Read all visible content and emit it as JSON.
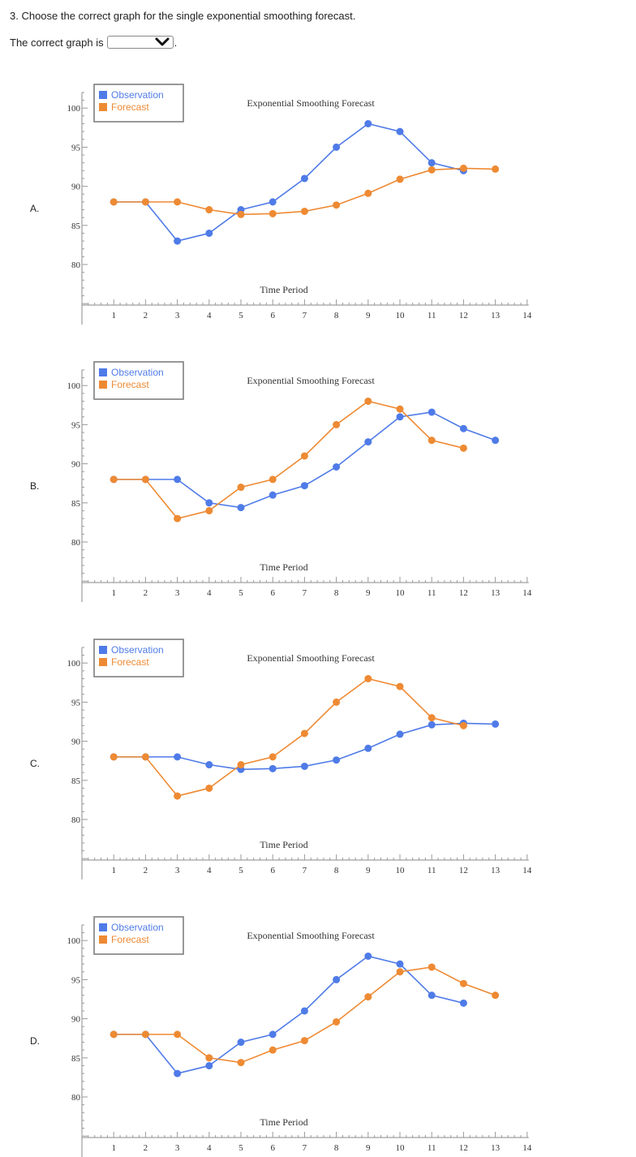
{
  "question": {
    "text": "3. Choose the correct graph for the single exponential smoothing forecast.",
    "answer_prefix": "The correct graph is",
    "answer_suffix": ".",
    "selected_value": ""
  },
  "colors": {
    "observation": "#4f7be8",
    "forecast": "#ee8a33",
    "axis": "#333333"
  },
  "chart_data": [
    {
      "type": "line",
      "option_label": "A.",
      "title": "Exponential Smoothing Forecast",
      "xlabel": "Time Period",
      "ylabel": "",
      "x_ticks": [
        "1",
        "2",
        "3",
        "4",
        "5",
        "6",
        "7",
        "8",
        "9",
        "10",
        "11",
        "12",
        "13",
        "14"
      ],
      "y_ticks": [
        "80",
        "85",
        "90",
        "95",
        "100"
      ],
      "xlim": [
        0,
        14
      ],
      "ylim": [
        75,
        102
      ],
      "legend": [
        "Observation",
        "Forecast"
      ],
      "series": [
        {
          "name": "Observation",
          "x": [
            1,
            2,
            3,
            4,
            5,
            6,
            7,
            8,
            9,
            10,
            11,
            12
          ],
          "values": [
            88,
            88,
            83,
            84,
            87,
            88,
            91,
            95,
            98,
            97,
            93,
            92
          ]
        },
        {
          "name": "Forecast",
          "x": [
            1,
            2,
            3,
            4,
            5,
            6,
            7,
            8,
            9,
            10,
            11,
            12,
            13
          ],
          "values": [
            88,
            88,
            88,
            87,
            86.4,
            86.5,
            86.8,
            87.6,
            89.1,
            90.9,
            92.1,
            92.3,
            92.2
          ]
        }
      ]
    },
    {
      "type": "line",
      "option_label": "B.",
      "title": "Exponential Smoothing Forecast",
      "xlabel": "Time Period",
      "ylabel": "",
      "x_ticks": [
        "1",
        "2",
        "3",
        "4",
        "5",
        "6",
        "7",
        "8",
        "9",
        "10",
        "11",
        "12",
        "13",
        "14"
      ],
      "y_ticks": [
        "80",
        "85",
        "90",
        "95",
        "100"
      ],
      "xlim": [
        0,
        14
      ],
      "ylim": [
        75,
        102
      ],
      "legend": [
        "Observation",
        "Forecast"
      ],
      "series": [
        {
          "name": "Observation",
          "x": [
            1,
            2,
            3,
            4,
            5,
            6,
            7,
            8,
            9,
            10,
            11,
            12,
            13
          ],
          "values": [
            88,
            88,
            88,
            85,
            84.4,
            86,
            87.2,
            89.6,
            92.8,
            96,
            96.6,
            94.5,
            93
          ]
        },
        {
          "name": "Forecast",
          "x": [
            1,
            2,
            3,
            4,
            5,
            6,
            7,
            8,
            9,
            10,
            11,
            12
          ],
          "values": [
            88,
            88,
            83,
            84,
            87,
            88,
            91,
            95,
            98,
            97,
            93,
            92
          ]
        }
      ]
    },
    {
      "type": "line",
      "option_label": "C.",
      "title": "Exponential Smoothing Forecast",
      "xlabel": "Time Period",
      "ylabel": "",
      "x_ticks": [
        "1",
        "2",
        "3",
        "4",
        "5",
        "6",
        "7",
        "8",
        "9",
        "10",
        "11",
        "12",
        "13",
        "14"
      ],
      "y_ticks": [
        "80",
        "85",
        "90",
        "95",
        "100"
      ],
      "xlim": [
        0,
        14
      ],
      "ylim": [
        75,
        102
      ],
      "legend": [
        "Observation",
        "Forecast"
      ],
      "series": [
        {
          "name": "Observation",
          "x": [
            1,
            2,
            3,
            4,
            5,
            6,
            7,
            8,
            9,
            10,
            11,
            12,
            13
          ],
          "values": [
            88,
            88,
            88,
            87,
            86.4,
            86.5,
            86.8,
            87.6,
            89.1,
            90.9,
            92.1,
            92.3,
            92.2
          ]
        },
        {
          "name": "Forecast",
          "x": [
            1,
            2,
            3,
            4,
            5,
            6,
            7,
            8,
            9,
            10,
            11,
            12
          ],
          "values": [
            88,
            88,
            83,
            84,
            87,
            88,
            91,
            95,
            98,
            97,
            93,
            92
          ]
        }
      ]
    },
    {
      "type": "line",
      "option_label": "D.",
      "title": "Exponential Smoothing Forecast",
      "xlabel": "Time Period",
      "ylabel": "",
      "x_ticks": [
        "1",
        "2",
        "3",
        "4",
        "5",
        "6",
        "7",
        "8",
        "9",
        "10",
        "11",
        "12",
        "13",
        "14"
      ],
      "y_ticks": [
        "80",
        "85",
        "90",
        "95",
        "100"
      ],
      "xlim": [
        0,
        14
      ],
      "ylim": [
        75,
        102
      ],
      "legend": [
        "Observation",
        "Forecast"
      ],
      "series": [
        {
          "name": "Observation",
          "x": [
            1,
            2,
            3,
            4,
            5,
            6,
            7,
            8,
            9,
            10,
            11,
            12
          ],
          "values": [
            88,
            88,
            83,
            84,
            87,
            88,
            91,
            95,
            98,
            97,
            93,
            92
          ]
        },
        {
          "name": "Forecast",
          "x": [
            1,
            2,
            3,
            4,
            5,
            6,
            7,
            8,
            9,
            10,
            11,
            12,
            13
          ],
          "values": [
            88,
            88,
            88,
            85,
            84.4,
            86,
            87.2,
            89.6,
            92.8,
            96,
            96.6,
            94.5,
            93
          ]
        }
      ]
    }
  ]
}
